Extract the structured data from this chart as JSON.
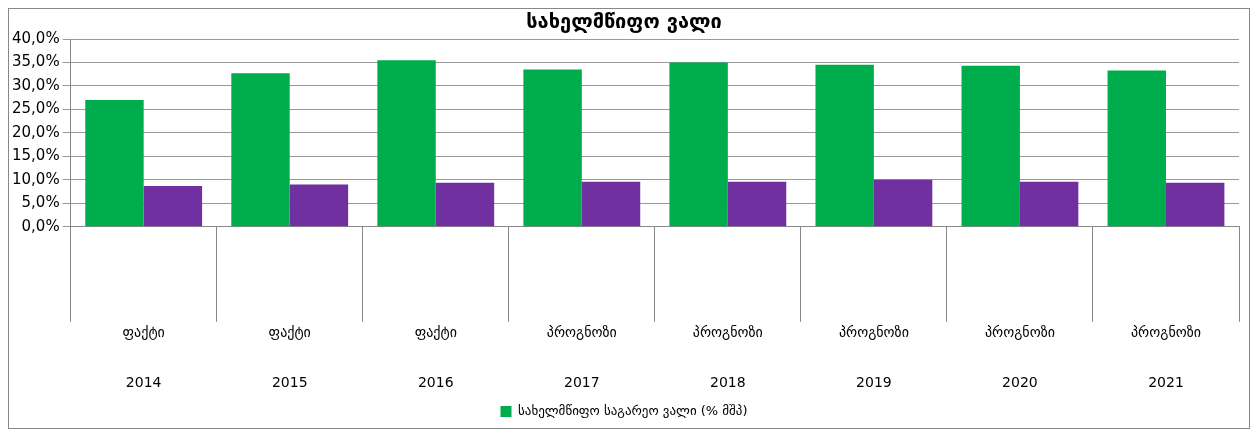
{
  "chart_data": {
    "type": "bar",
    "title": "სახელმწიფო ვალი",
    "categories": [
      "ფაქტი\n2014",
      "ფაქტი\n2015",
      "ფაქტი\n2016",
      "პროგნოზი\n2017",
      "პროგნოზი\n2018",
      "პროგნოზი\n2019",
      "პროგნოზი\n2020",
      "პროგნოზი\n2021"
    ],
    "series": [
      {
        "name": "სახელმწიფო საგარეო ვალი (% მშპ)",
        "color": "#00ad4c",
        "values": [
          27.0,
          32.7,
          35.5,
          33.5,
          35.0,
          34.5,
          34.3,
          33.3
        ]
      },
      {
        "color": "#7030a0",
        "values": [
          8.7,
          9.0,
          9.4,
          9.6,
          9.6,
          10.0,
          9.6,
          9.4
        ]
      }
    ],
    "ylim": [
      0,
      40
    ],
    "yticks": [
      {
        "value": 0,
        "label": "0,0%"
      },
      {
        "value": 5,
        "label": "5,0%"
      },
      {
        "value": 10,
        "label": "10,0%"
      },
      {
        "value": 15,
        "label": "15,0%"
      },
      {
        "value": 20,
        "label": "20,0%"
      },
      {
        "value": 25,
        "label": "25,0%"
      },
      {
        "value": 30,
        "label": "30,0%"
      },
      {
        "value": 35,
        "label": "35,0%"
      },
      {
        "value": 40,
        "label": "40,0%"
      }
    ],
    "grid": "y",
    "legend": "bottom"
  }
}
